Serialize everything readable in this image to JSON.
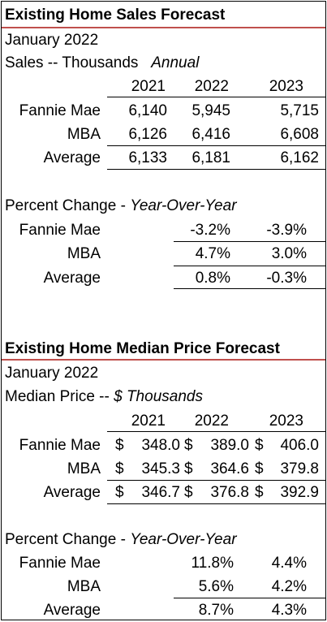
{
  "sales": {
    "title": "Existing Home Sales Forecast",
    "date": "January 2022",
    "subtitle_main": "Sales -- Thousands",
    "subtitle_italic": "Annual",
    "years": [
      "2021",
      "2022",
      "2023"
    ],
    "rows": [
      {
        "label": "Fannie Mae",
        "values": [
          "6,140",
          "5,945",
          "5,715"
        ]
      },
      {
        "label": "MBA",
        "values": [
          "6,126",
          "6,416",
          "6,608"
        ]
      },
      {
        "label": "Average",
        "values": [
          "6,133",
          "6,181",
          "6,162"
        ]
      }
    ],
    "pct_heading_main": "Percent Change - ",
    "pct_heading_italic": "Year-Over-Year",
    "pct_rows": [
      {
        "label": "Fannie Mae",
        "values": [
          "-3.2%",
          "-3.9%"
        ]
      },
      {
        "label": "MBA",
        "values": [
          "4.7%",
          "3.0%"
        ]
      },
      {
        "label": "Average",
        "values": [
          "0.8%",
          "-0.3%"
        ]
      }
    ]
  },
  "price": {
    "title": "Existing Home Median Price Forecast",
    "date": "January 2022",
    "subtitle_main": "Median Price -- ",
    "subtitle_italic": "$ Thousands",
    "years": [
      "2021",
      "2022",
      "2023"
    ],
    "currency": "$",
    "rows": [
      {
        "label": "Fannie Mae",
        "values": [
          "348.0",
          "389.0",
          "406.0"
        ]
      },
      {
        "label": "MBA",
        "values": [
          "345.3",
          "364.6",
          "379.8"
        ]
      },
      {
        "label": "Average",
        "values": [
          "346.7",
          "376.8",
          "392.9"
        ]
      }
    ],
    "pct_heading_main": "Percent Change - ",
    "pct_heading_italic": "Year-Over-Year",
    "pct_rows": [
      {
        "label": "Fannie Mae",
        "values": [
          "11.8%",
          "4.4%"
        ]
      },
      {
        "label": "MBA",
        "values": [
          "5.6%",
          "4.2%"
        ]
      },
      {
        "label": "Average",
        "values": [
          "8.7%",
          "4.3%"
        ]
      }
    ]
  }
}
